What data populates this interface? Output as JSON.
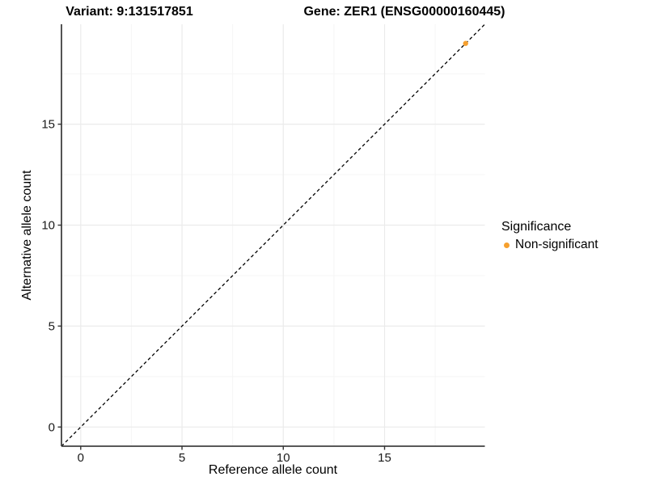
{
  "chart_data": {
    "type": "scatter",
    "titles": {
      "left": "Variant: 9:131517851",
      "right": "Gene: ZER1 (ENSG00000160445)"
    },
    "xlabel": "Reference allele count",
    "ylabel": "Alternative allele count",
    "xlim": [
      -0.95,
      19.95
    ],
    "ylim": [
      -0.95,
      19.95
    ],
    "x_major_ticks": [
      0,
      5,
      10,
      15
    ],
    "y_major_ticks": [
      0,
      5,
      10,
      15
    ],
    "x_minor_ticks": [
      2.5,
      7.5,
      12.5,
      17.5
    ],
    "y_minor_ticks": [
      2.5,
      7.5,
      12.5,
      17.5
    ],
    "grid": "major+minor",
    "legend_position": "right",
    "identity_line": {
      "slope": 1,
      "intercept": 0,
      "style": "dashed",
      "color": "#000000"
    },
    "series": [
      {
        "name": "Non-significant",
        "color": "#F6A02E",
        "points": [
          {
            "x": 19,
            "y": 19
          }
        ]
      }
    ],
    "legend": {
      "title": "Significance",
      "entries": [
        {
          "label": "Non-significant",
          "color": "#F6A02E"
        }
      ]
    },
    "colors": {
      "axis_line": "#404040",
      "tick_mark": "#333333",
      "tick_text": "#1a1a1a",
      "grid_major": "#ebebeb",
      "grid_minor": "#f5f5f5",
      "background": "#ffffff"
    }
  }
}
